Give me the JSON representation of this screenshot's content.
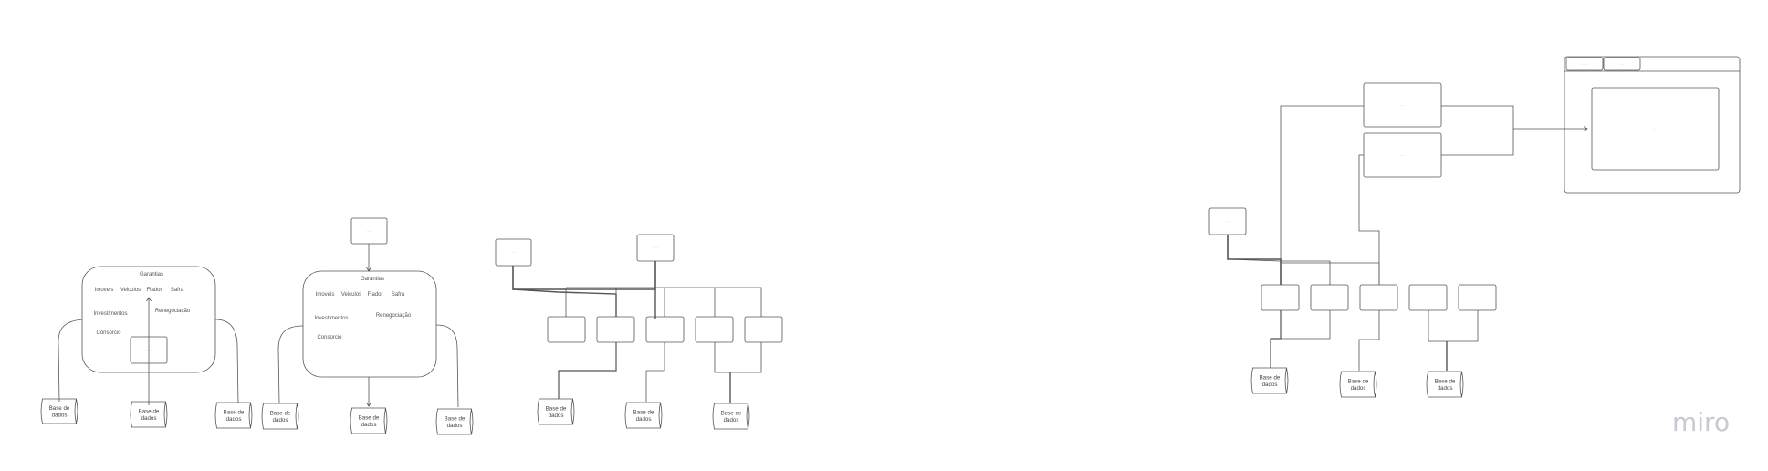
{
  "app": {
    "brand_logo_text": "miro"
  },
  "colors": {
    "stroke": "#555555",
    "background": "#ffffff",
    "brand": "#c9c9d2"
  },
  "labels": {
    "garantias": "Garantias",
    "imoveis": "Imoveis",
    "veiculos": "Veiculos",
    "fiador": "Fiador",
    "safra": "Safra",
    "investimentos": "Investimentos",
    "renegociacao": "Renegociação",
    "consorcio": "Consorcio",
    "base_de_dados": [
      "Base de",
      "dados"
    ],
    "tiny_box": "········"
  }
}
